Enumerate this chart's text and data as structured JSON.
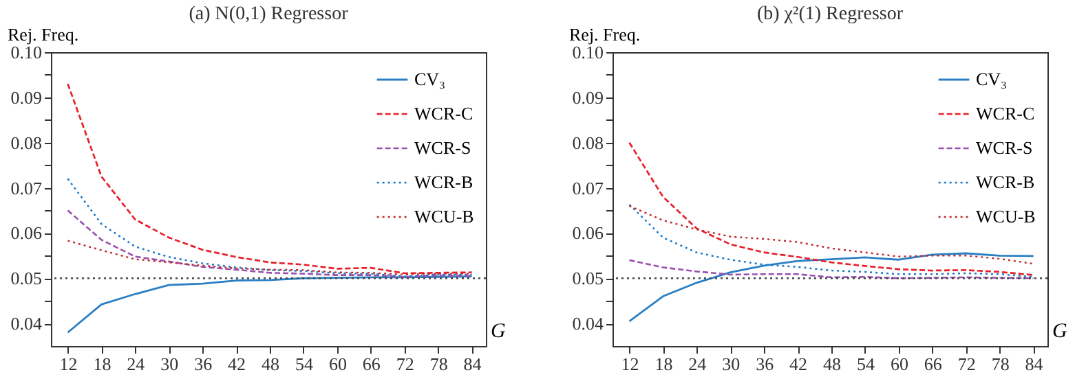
{
  "chart_data": [
    {
      "type": "line",
      "title": "(a) N(0,1) Regressor",
      "xlabel": "G",
      "ylabel": "Rej. Freq.",
      "x": [
        12,
        18,
        24,
        30,
        36,
        42,
        48,
        54,
        60,
        66,
        72,
        78,
        84
      ],
      "series": [
        {
          "name": "CV₃",
          "color": "#2a7fc4",
          "line_style": "solid",
          "values": [
            0.038,
            0.0442,
            0.0465,
            0.0485,
            0.0488,
            0.0495,
            0.0496,
            0.05,
            0.0501,
            0.0502,
            0.0502,
            0.0503,
            0.0504
          ]
        },
        {
          "name": "WCR-C",
          "color": "#e8202a",
          "line_style": "dashed",
          "values": [
            0.093,
            0.0725,
            0.063,
            0.059,
            0.0563,
            0.0547,
            0.0535,
            0.053,
            0.0521,
            0.0523,
            0.0511,
            0.0512,
            0.0513
          ]
        },
        {
          "name": "WCR-S",
          "color": "#9b4fb0",
          "line_style": "dashed",
          "values": [
            0.065,
            0.0585,
            0.0548,
            0.0537,
            0.0525,
            0.0519,
            0.0512,
            0.051,
            0.0507,
            0.0507,
            0.0503,
            0.0506,
            0.0505
          ]
        },
        {
          "name": "WCR-B",
          "color": "#1a78c8",
          "line_style": "dotted",
          "values": [
            0.072,
            0.062,
            0.057,
            0.0547,
            0.0533,
            0.0524,
            0.0518,
            0.0516,
            0.0511,
            0.051,
            0.0504,
            0.0508,
            0.0508
          ]
        },
        {
          "name": "WCU-B",
          "color": "#c0282a",
          "line_style": "dotted",
          "values": [
            0.0583,
            0.0562,
            0.0542,
            0.0535,
            0.0528,
            0.0522,
            0.0519,
            0.0518,
            0.0513,
            0.0512,
            0.0508,
            0.051,
            0.051
          ]
        }
      ],
      "xlim": [
        9,
        86.5
      ],
      "xticks": [
        12,
        18,
        24,
        30,
        36,
        42,
        48,
        54,
        60,
        66,
        72,
        78,
        84
      ],
      "ylim": [
        0.035,
        0.1
      ],
      "yticks": [
        0.04,
        {
          "value": 0.045,
          "label": null
        },
        0.05,
        {
          "value": 0.055,
          "label": null
        },
        0.06,
        {
          "value": 0.065,
          "label": null
        },
        0.07,
        {
          "value": 0.075,
          "label": null
        },
        0.08,
        {
          "value": 0.085,
          "label": null
        },
        0.09,
        {
          "value": 0.095,
          "label": null
        },
        {
          "value": 0.1,
          "label": "0.10"
        }
      ],
      "ref_lines": [
        {
          "axis": "y",
          "value": 0.05,
          "color": "#444444",
          "line_style": "dotted"
        }
      ],
      "grid": false,
      "legend": "top right"
    },
    {
      "type": "line",
      "title": "(b) χ²(1) Regressor",
      "xlabel": "G",
      "ylabel": "Rej. Freq.",
      "x": [
        12,
        18,
        24,
        30,
        36,
        42,
        48,
        54,
        60,
        66,
        72,
        78,
        84
      ],
      "series": [
        {
          "name": "CV₃",
          "color": "#2a7fc4",
          "line_style": "solid",
          "values": [
            0.0405,
            0.046,
            0.049,
            0.0513,
            0.0528,
            0.0538,
            0.0542,
            0.0546,
            0.0541,
            0.0552,
            0.0555,
            0.055,
            0.0549
          ]
        },
        {
          "name": "WCR-C",
          "color": "#e8202a",
          "line_style": "dashed",
          "values": [
            0.08,
            0.068,
            0.061,
            0.0575,
            0.0557,
            0.0547,
            0.0535,
            0.0527,
            0.052,
            0.0517,
            0.0518,
            0.0514,
            0.0507
          ]
        },
        {
          "name": "WCR-S",
          "color": "#9b4fb0",
          "line_style": "dashed",
          "values": [
            0.054,
            0.0524,
            0.0515,
            0.0508,
            0.0509,
            0.0509,
            0.0502,
            0.0503,
            0.05,
            0.0501,
            0.0502,
            0.0501,
            0.05
          ]
        },
        {
          "name": "WCR-B",
          "color": "#1a78c8",
          "line_style": "dotted",
          "values": [
            0.0663,
            0.059,
            0.0557,
            0.0541,
            0.053,
            0.0525,
            0.0517,
            0.0514,
            0.0509,
            0.0509,
            0.0511,
            0.0509,
            0.0503
          ]
        },
        {
          "name": "WCU-B",
          "color": "#c0282a",
          "line_style": "dotted",
          "values": [
            0.066,
            0.0628,
            0.0608,
            0.0592,
            0.0587,
            0.058,
            0.0566,
            0.0557,
            0.0548,
            0.055,
            0.055,
            0.0543,
            0.0532
          ]
        }
      ],
      "xlim": [
        9,
        86.5
      ],
      "xticks": [
        12,
        18,
        24,
        30,
        36,
        42,
        48,
        54,
        60,
        66,
        72,
        78,
        84
      ],
      "ylim": [
        0.035,
        0.1
      ],
      "yticks": [
        0.04,
        {
          "value": 0.045,
          "label": null
        },
        0.05,
        {
          "value": 0.055,
          "label": null
        },
        0.06,
        {
          "value": 0.065,
          "label": null
        },
        0.07,
        {
          "value": 0.075,
          "label": null
        },
        0.08,
        {
          "value": 0.085,
          "label": null
        },
        0.09,
        {
          "value": 0.095,
          "label": null
        },
        {
          "value": 0.1,
          "label": "0.10"
        }
      ],
      "ref_lines": [
        {
          "axis": "y",
          "value": 0.05,
          "color": "#444444",
          "line_style": "dotted"
        }
      ],
      "grid": false,
      "legend": "top right"
    }
  ]
}
